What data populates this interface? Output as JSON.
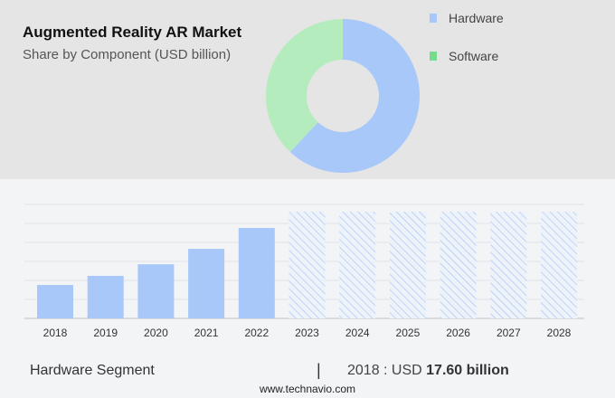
{
  "title": "Augmented Reality AR Market",
  "subtitle": "Share by Component (USD billion)",
  "footer": {
    "segment": "Hardware Segment",
    "separator": "|",
    "value_prefix": "2018 : USD ",
    "value_bold": "17.60 billion",
    "url": "www.technavio.com"
  },
  "chart_data": [
    {
      "type": "pie",
      "variant": "donut",
      "slices": [
        {
          "name": "Hardware",
          "value": 62,
          "color": "#a8c8fa"
        },
        {
          "name": "Software",
          "value": 38,
          "color": "#b4ecbe"
        }
      ],
      "legend_colors": {
        "Hardware": "#a8c8fa",
        "Software": "#74dc8a"
      },
      "legend_placement": "right"
    },
    {
      "type": "bar",
      "categories": [
        "2018",
        "2019",
        "2020",
        "2021",
        "2022",
        "2023",
        "2024",
        "2025",
        "2026",
        "2027",
        "2028"
      ],
      "values": [
        17.6,
        22.4,
        28.5,
        36.6,
        47.6,
        null,
        null,
        null,
        null,
        null,
        null
      ],
      "forecast_categories": [
        "2023",
        "2024",
        "2025",
        "2026",
        "2027",
        "2028"
      ],
      "ylim": [
        0,
        60
      ],
      "grid": true,
      "color": "#a8c8fa",
      "forecast_style": "hatched"
    }
  ]
}
